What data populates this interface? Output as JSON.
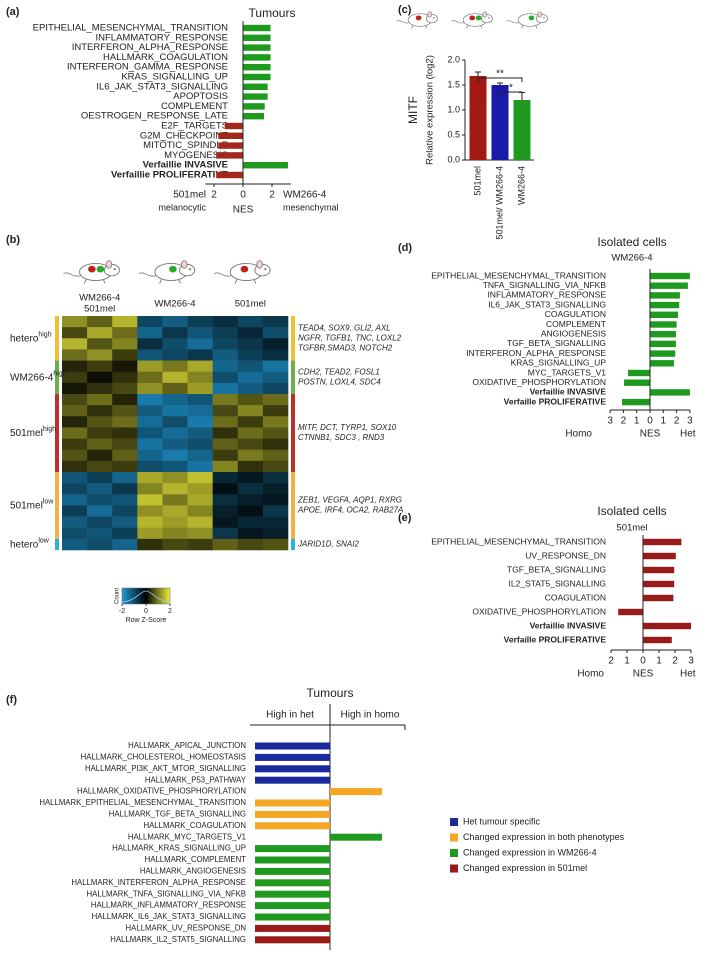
{
  "chart_data": [
    {
      "type": "barh",
      "panel": "(a)",
      "title": "Tumours",
      "categories": [
        "EPITHELIAL_MESENCHYMAL_TRANSITION",
        "INFLAMMATORY_RESPONSE",
        "INTERFERON_ALPHA_RESPONSE",
        "HALLMARK_COAGULATION",
        "INTERFERON_GAMMA_RESPONSE",
        "KRAS_SIGNALLING_UP",
        "IL6_JAK_STAT3_SIGNALLING",
        "APOPTOSIS",
        "COMPLEMENT",
        "OESTROGEN_RESPONSE_LATE",
        "E2F_TARGETS",
        "G2M_CHECKPOINT",
        "MITOTIC_SPINDLE",
        "MYOGENESIS",
        "Verfaillie INVASIVE",
        "Verfaillie PROLIFERATIVE"
      ],
      "values": [
        1.9,
        1.9,
        1.9,
        1.9,
        1.9,
        1.9,
        1.7,
        1.7,
        1.5,
        1.45,
        -1.25,
        -1.7,
        -1.7,
        -1.85,
        3.1,
        -1.85
      ],
      "bold": [
        14,
        15
      ],
      "pos_color": "#1f9a1f",
      "neg_color": "#a3281a",
      "xlim": [
        -2.6,
        3.3
      ],
      "xticks": [
        {
          "value": -2,
          "label": "2"
        },
        0,
        2
      ],
      "xlabel": "NES",
      "left_label": "501mel",
      "left_sublabel": "melanocytic",
      "right_label": "WM266-4",
      "right_sublabel": "mesenchymal"
    },
    {
      "type": "heatmap",
      "panel": "(b)",
      "column_labels": [
        [
          "WM266-4",
          "501mel"
        ],
        [
          "WM266-4"
        ],
        [
          "501mel"
        ]
      ],
      "colormap": [
        "#1f9ad6",
        "#000000",
        "#f0f03c"
      ],
      "zlim": [
        -2,
        2
      ],
      "zticks": [
        -2,
        0,
        2
      ],
      "zlabel": "Row Z-Score",
      "count_label": "Count",
      "row_groups": [
        {
          "name": "hetero",
          "sup": "high",
          "color": "#f0c030",
          "genes": [
            "TEAD4, SOX9, GLI2, AXL",
            "NGFR, TGFB1, TNC, LOXL2",
            "TGFBR,SMAD3, NOTCH2"
          ],
          "rows": [
            [
              1.2,
              0.8,
              1.5,
              -0.9,
              -1.2,
              -0.8,
              -0.6,
              -0.9,
              -0.7
            ],
            [
              0.6,
              1.4,
              0.9,
              -1.3,
              -0.7,
              -1.1,
              -0.8,
              -0.5,
              -1.0
            ],
            [
              1.5,
              0.7,
              1.1,
              -0.6,
              -1.0,
              -1.4,
              -0.9,
              -0.7,
              -0.4
            ],
            [
              0.9,
              1.2,
              0.5,
              -1.1,
              -0.9,
              -0.7,
              -1.2,
              -0.8,
              -0.6
            ]
          ]
        },
        {
          "name": "WM266-4",
          "sup": "high",
          "color": "#6ab04c",
          "genes": [
            "CDH2, TEAD2, FOSL1",
            "POSTN, LOXL4, SDC4"
          ],
          "rows": [
            [
              0.3,
              0.5,
              0.2,
              1.3,
              1.0,
              1.4,
              -1.3,
              -1.1,
              -1.5
            ],
            [
              0.5,
              0.1,
              0.4,
              0.9,
              1.5,
              1.1,
              -1.0,
              -1.4,
              -1.2
            ],
            [
              0.2,
              0.4,
              0.6,
              1.2,
              0.8,
              1.3,
              -1.5,
              -1.2,
              -0.9
            ]
          ]
        },
        {
          "name": "501mel",
          "sup": "high",
          "color": "#c0302a",
          "genes": [
            "MITF, DCT, TYRP1, SOX10",
            "CTNNB1, SDC3 , RND3"
          ],
          "rows": [
            [
              0.6,
              0.9,
              0.3,
              -1.6,
              -1.3,
              -1.1,
              1.0,
              0.7,
              0.9
            ],
            [
              0.8,
              0.4,
              0.7,
              -1.2,
              -1.5,
              -1.4,
              0.6,
              1.1,
              0.5
            ],
            [
              0.3,
              0.7,
              0.9,
              -1.4,
              -1.0,
              -1.6,
              0.9,
              0.5,
              1.0
            ],
            [
              0.9,
              0.5,
              0.4,
              -1.1,
              -1.4,
              -1.2,
              0.4,
              0.9,
              0.7
            ],
            [
              0.5,
              0.8,
              0.6,
              -1.5,
              -1.2,
              -1.0,
              0.8,
              0.6,
              0.4
            ],
            [
              0.7,
              0.3,
              0.8,
              -1.3,
              -1.6,
              -1.3,
              0.5,
              1.0,
              0.8
            ],
            [
              0.4,
              0.6,
              0.5,
              -1.0,
              -1.1,
              -1.5,
              1.1,
              0.4,
              0.6
            ]
          ]
        },
        {
          "name": "501mel",
          "sup": "low",
          "color": "#f5b041",
          "genes": [
            "ZEB1, VEGFA, AQP1, RXRG",
            "APOE, IRF4, OCA2, RAB27A"
          ],
          "rows": [
            [
              -1.1,
              -0.8,
              -1.3,
              1.4,
              1.2,
              1.6,
              -0.5,
              -0.3,
              -0.6
            ],
            [
              -0.9,
              -1.2,
              -0.7,
              1.1,
              1.5,
              1.3,
              -0.2,
              -0.6,
              -0.4
            ],
            [
              -1.3,
              -1.0,
              -1.1,
              1.6,
              1.0,
              1.4,
              -0.6,
              -0.4,
              -0.3
            ],
            [
              -0.8,
              -1.4,
              -0.9,
              1.2,
              1.4,
              1.1,
              -0.4,
              -0.2,
              -0.7
            ],
            [
              -1.2,
              -0.9,
              -1.2,
              1.5,
              1.3,
              1.5,
              -0.3,
              -0.5,
              -0.5
            ],
            [
              -1.0,
              -1.1,
              -0.8,
              1.3,
              1.1,
              1.2,
              -0.7,
              -0.3,
              -0.4
            ]
          ]
        },
        {
          "name": "hetero",
          "sup": "low",
          "color": "#29b6d8",
          "genes": [
            "JARID1D, SNAI2"
          ],
          "rows": [
            [
              -1.2,
              -1.0,
              -1.3,
              0.4,
              0.6,
              0.5,
              0.8,
              0.6,
              0.7
            ]
          ]
        }
      ]
    },
    {
      "type": "bar",
      "panel": "(c)",
      "title": "MITF",
      "ylabel": "Relative expression (log2)",
      "categories": [
        "501mel",
        "501mel/ WM266-4",
        "WM266-4"
      ],
      "values": [
        1.68,
        1.5,
        1.2
      ],
      "errors": [
        0.08,
        0.04,
        0.15
      ],
      "colors": [
        "#a31a12",
        "#1a1aa8",
        "#1f9a1f"
      ],
      "ylim": [
        0,
        2
      ],
      "yticks": [
        {
          "value": 0,
          "label": "0.0"
        },
        0.5,
        {
          "value": 1,
          "label": "1.0"
        },
        1.5,
        {
          "value": 2,
          "label": "2.0"
        }
      ],
      "significance": [
        {
          "from": 0,
          "to": 2,
          "label": "**"
        },
        {
          "from": 1,
          "to": 2,
          "label": "*"
        }
      ]
    },
    {
      "type": "barh",
      "panel": "(d)",
      "title": "Isolated cells",
      "subtitle": "WM266-4",
      "categories": [
        "EPITHELIAL_MESENCHYMAL_TRANSITION",
        "TNFA_SIGNALLING_VIA_NFKB",
        "INFLAMMATORY_RESPONSE",
        "IL6_JAK_STAT3_SIGNALLING",
        "COAGULATION",
        "COMPLEMENT",
        "ANGIOGENESIS",
        "TGF_BETA_SIGNALLING",
        "INTERFERON_ALPHA_RESPONSE",
        "KRAS_SIGNALLING_UP",
        "MYC_TARGETS_V1",
        "OXIDATIVE_PHOSPHORYLATION",
        "Verfaillie INVASIVE",
        "Verfaille PROLIFERATIVE"
      ],
      "values": [
        3.0,
        2.85,
        2.25,
        2.2,
        2.1,
        2.0,
        1.95,
        1.95,
        1.9,
        1.8,
        -1.65,
        -1.95,
        3.0,
        -2.1
      ],
      "bold": [
        12,
        13
      ],
      "pos_color": "#1f9a1f",
      "neg_color": "#1f9a1f",
      "xlim": [
        -3,
        3
      ],
      "xticks": [
        {
          "value": -3,
          "label": "3"
        },
        {
          "value": -2,
          "label": "2"
        },
        {
          "value": -1,
          "label": "1"
        },
        0,
        1,
        2,
        3
      ],
      "xlabel": "NES",
      "left_label": "Homo",
      "right_label": "Het"
    },
    {
      "type": "barh",
      "panel": "(e)",
      "title": "Isolated cells",
      "subtitle": "501mel",
      "categories": [
        "EPITHELIAL_MESENCHYMAL_TRANSITION",
        "UV_RESPONSE_DN",
        "TGF_BETA_SIGNALLING",
        "IL2_STAT5_SIGNALLING",
        "COAGULATION",
        "OXIDATIVE_PHOSPHORYLATION",
        "Verfaillie INVASIVE",
        "Verfaille PROLIFERATIVE"
      ],
      "values": [
        2.4,
        2.05,
        1.95,
        1.95,
        1.9,
        -1.55,
        3.0,
        1.8
      ],
      "bold": [
        6,
        7
      ],
      "pos_color": "#9a1a1a",
      "neg_color": "#9a1a1a",
      "xlim": [
        -2,
        3
      ],
      "xticks": [
        {
          "value": -2,
          "label": "2"
        },
        {
          "value": -1,
          "label": "1"
        },
        0,
        1,
        2,
        3
      ],
      "xlabel": "NES",
      "left_label": "Homo",
      "right_label": "Het"
    },
    {
      "type": "category_bars",
      "panel": "(f)",
      "title": "Tumours",
      "columns": [
        "High in het",
        "High in homo"
      ],
      "series": [
        {
          "name": "Het tumour specific",
          "color": "#1a2a9c"
        },
        {
          "name": "Changed expression in both phenotypes",
          "color": "#f5a623"
        },
        {
          "name": "Changed expression in WM266-4",
          "color": "#1f9a1f"
        },
        {
          "name": "Changed expression in 501mel",
          "color": "#9a1a1a"
        }
      ],
      "rows": [
        {
          "label": "HALLMARK_APICAL_JUNCTION",
          "series": 0,
          "side": 0
        },
        {
          "label": "HALLMARK_CHOLESTEROL_HOMEOSTASIS",
          "series": 0,
          "side": 0
        },
        {
          "label": "HALLMARK_PI3K_AKT_MTOR_SIGNALLING",
          "series": 0,
          "side": 0
        },
        {
          "label": "HALLMARK_P53_PATHWAY",
          "series": 0,
          "side": 0
        },
        {
          "label": "HALLMARK_OXIDATIVE_PHOSPHORYLATION",
          "series": 1,
          "side": 1
        },
        {
          "label": "HALLMARK_EPITHELIAL_MESENCHYMAL_TRANSITION",
          "series": 1,
          "side": 0
        },
        {
          "label": "HALLMARK_TGF_BETA_SIGNALLING",
          "series": 1,
          "side": 0
        },
        {
          "label": "HALLMARK_COAGULATION",
          "series": 1,
          "side": 0
        },
        {
          "label": "HALLMARK_MYC_TARGETS_V1",
          "series": 2,
          "side": 1
        },
        {
          "label": "HALLMARK_KRAS_SIGNALLING_UP",
          "series": 2,
          "side": 0
        },
        {
          "label": "HALLMARK_COMPLEMENT",
          "series": 2,
          "side": 0
        },
        {
          "label": "HALLMARK_ANGIOGENESIS",
          "series": 2,
          "side": 0
        },
        {
          "label": "HALLMARK_INTERFERON_ALPHA_RESPONSE",
          "series": 2,
          "side": 0
        },
        {
          "label": "HALLMARK_TNFA_SIGNALLING_VIA_NFKB",
          "series": 2,
          "side": 0
        },
        {
          "label": "HALLMARK_INFLAMMATORY_RESPONSE",
          "series": 2,
          "side": 0
        },
        {
          "label": "HALLMARK_IL6_JAK_STAT3_SIGNALLING",
          "series": 2,
          "side": 0
        },
        {
          "label": "HALLMARK_UV_RESPONSE_DN",
          "series": 3,
          "side": 0
        },
        {
          "label": "HALLMARK_IL2_STAT5_SIGNALLING",
          "series": 3,
          "side": 0
        }
      ]
    }
  ]
}
